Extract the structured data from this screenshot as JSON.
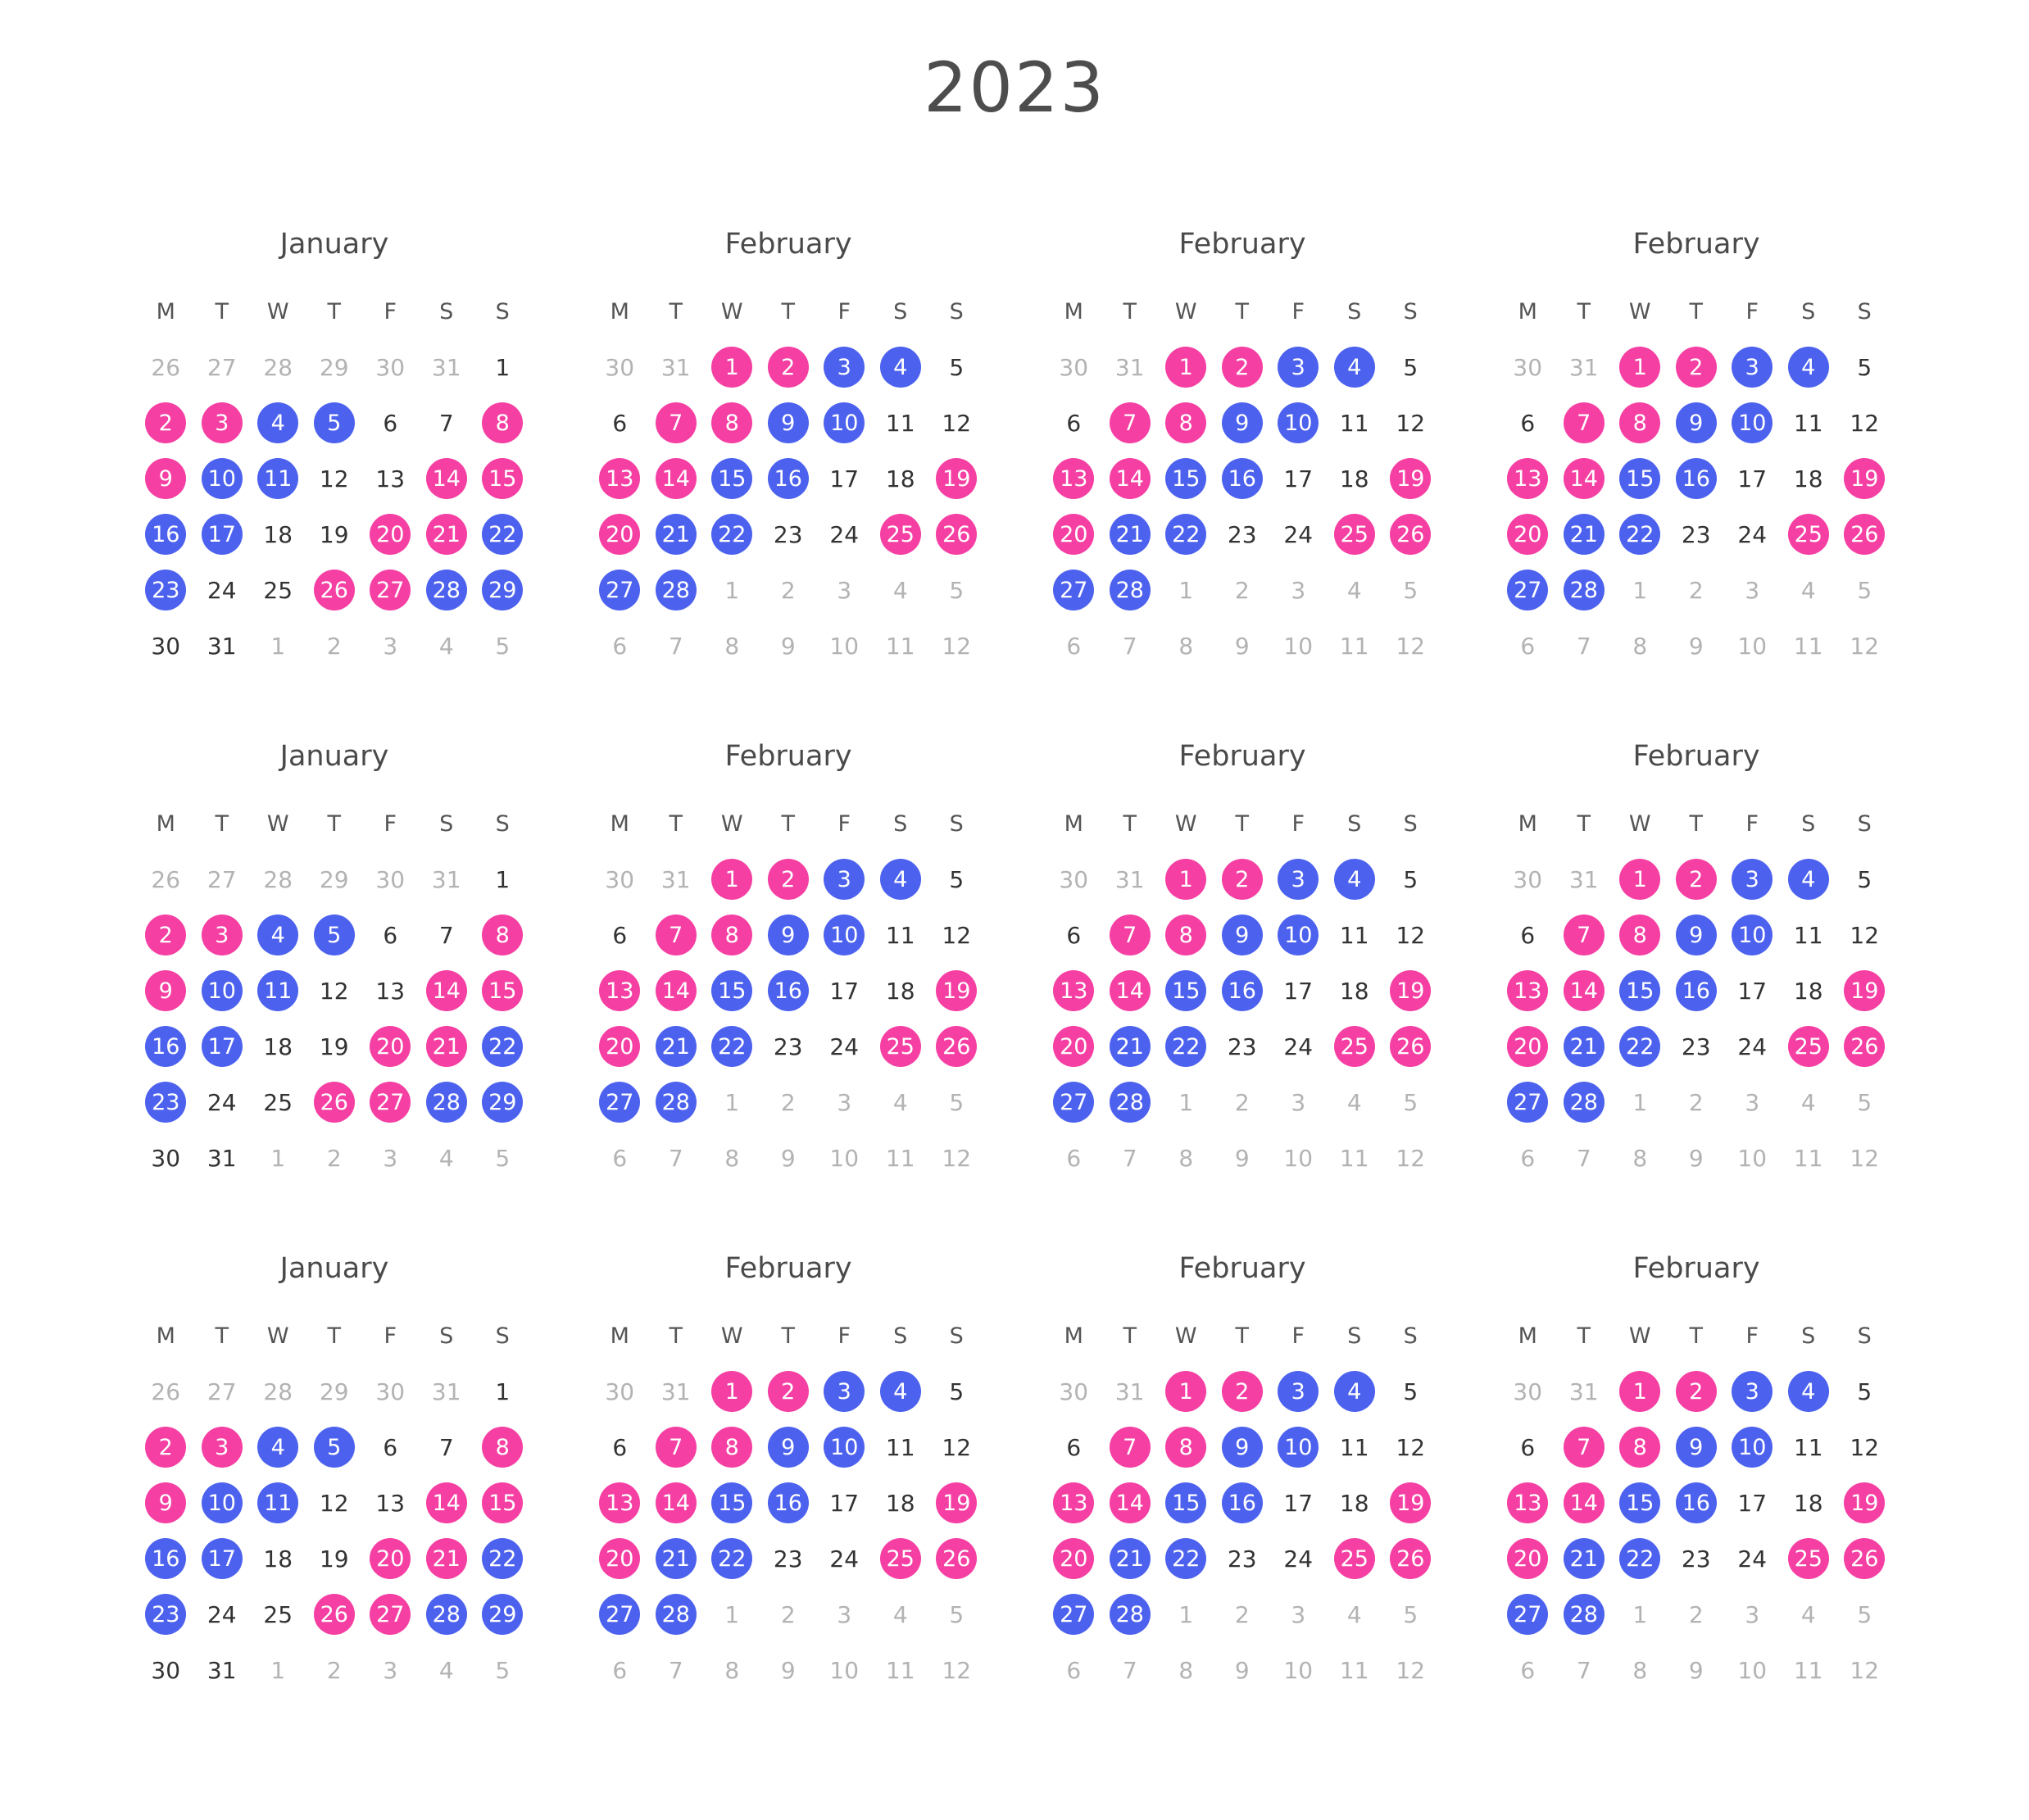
{
  "year_title": "2023",
  "colors": {
    "pink": "#f53fa3",
    "blue": "#4c62ee",
    "outside": "#b3b3b3",
    "text": "#333333"
  },
  "weekday_headers": [
    "M",
    "T",
    "W",
    "T",
    "F",
    "S",
    "S"
  ],
  "month_templates": {
    "january": {
      "name": "January",
      "days": [
        {
          "d": "26",
          "o": true
        },
        {
          "d": "27",
          "o": true
        },
        {
          "d": "28",
          "o": true
        },
        {
          "d": "29",
          "o": true
        },
        {
          "d": "30",
          "o": true
        },
        {
          "d": "31",
          "o": true
        },
        {
          "d": "1"
        },
        {
          "d": "2",
          "c": "pink"
        },
        {
          "d": "3",
          "c": "pink"
        },
        {
          "d": "4",
          "c": "blue"
        },
        {
          "d": "5",
          "c": "blue"
        },
        {
          "d": "6"
        },
        {
          "d": "7"
        },
        {
          "d": "8",
          "c": "pink"
        },
        {
          "d": "9",
          "c": "pink"
        },
        {
          "d": "10",
          "c": "blue"
        },
        {
          "d": "11",
          "c": "blue"
        },
        {
          "d": "12"
        },
        {
          "d": "13"
        },
        {
          "d": "14",
          "c": "pink"
        },
        {
          "d": "15",
          "c": "pink"
        },
        {
          "d": "16",
          "c": "blue"
        },
        {
          "d": "17",
          "c": "blue"
        },
        {
          "d": "18"
        },
        {
          "d": "19"
        },
        {
          "d": "20",
          "c": "pink"
        },
        {
          "d": "21",
          "c": "pink"
        },
        {
          "d": "22",
          "c": "blue"
        },
        {
          "d": "23",
          "c": "blue"
        },
        {
          "d": "24"
        },
        {
          "d": "25"
        },
        {
          "d": "26",
          "c": "pink"
        },
        {
          "d": "27",
          "c": "pink"
        },
        {
          "d": "28",
          "c": "blue"
        },
        {
          "d": "29",
          "c": "blue"
        },
        {
          "d": "30"
        },
        {
          "d": "31"
        },
        {
          "d": "1",
          "o": true
        },
        {
          "d": "2",
          "o": true
        },
        {
          "d": "3",
          "o": true
        },
        {
          "d": "4",
          "o": true
        },
        {
          "d": "5",
          "o": true
        }
      ]
    },
    "february": {
      "name": "February",
      "days": [
        {
          "d": "30",
          "o": true
        },
        {
          "d": "31",
          "o": true
        },
        {
          "d": "1",
          "c": "pink"
        },
        {
          "d": "2",
          "c": "pink"
        },
        {
          "d": "3",
          "c": "blue"
        },
        {
          "d": "4",
          "c": "blue"
        },
        {
          "d": "5"
        },
        {
          "d": "6"
        },
        {
          "d": "7",
          "c": "pink"
        },
        {
          "d": "8",
          "c": "pink"
        },
        {
          "d": "9",
          "c": "blue"
        },
        {
          "d": "10",
          "c": "blue"
        },
        {
          "d": "11"
        },
        {
          "d": "12"
        },
        {
          "d": "13",
          "c": "pink"
        },
        {
          "d": "14",
          "c": "pink"
        },
        {
          "d": "15",
          "c": "blue"
        },
        {
          "d": "16",
          "c": "blue"
        },
        {
          "d": "17"
        },
        {
          "d": "18"
        },
        {
          "d": "19",
          "c": "pink"
        },
        {
          "d": "20",
          "c": "pink"
        },
        {
          "d": "21",
          "c": "blue"
        },
        {
          "d": "22",
          "c": "blue"
        },
        {
          "d": "23"
        },
        {
          "d": "24"
        },
        {
          "d": "25",
          "c": "pink"
        },
        {
          "d": "26",
          "c": "pink"
        },
        {
          "d": "27",
          "c": "blue"
        },
        {
          "d": "28",
          "c": "blue"
        },
        {
          "d": "1",
          "o": true
        },
        {
          "d": "2",
          "o": true
        },
        {
          "d": "3",
          "o": true
        },
        {
          "d": "4",
          "o": true
        },
        {
          "d": "5",
          "o": true
        },
        {
          "d": "6",
          "o": true
        },
        {
          "d": "7",
          "o": true
        },
        {
          "d": "8",
          "o": true
        },
        {
          "d": "9",
          "o": true
        },
        {
          "d": "10",
          "o": true
        },
        {
          "d": "11",
          "o": true
        },
        {
          "d": "12",
          "o": true
        }
      ]
    }
  },
  "months": [
    "january",
    "february",
    "february",
    "february",
    "january",
    "february",
    "february",
    "february",
    "january",
    "february",
    "february",
    "february"
  ]
}
